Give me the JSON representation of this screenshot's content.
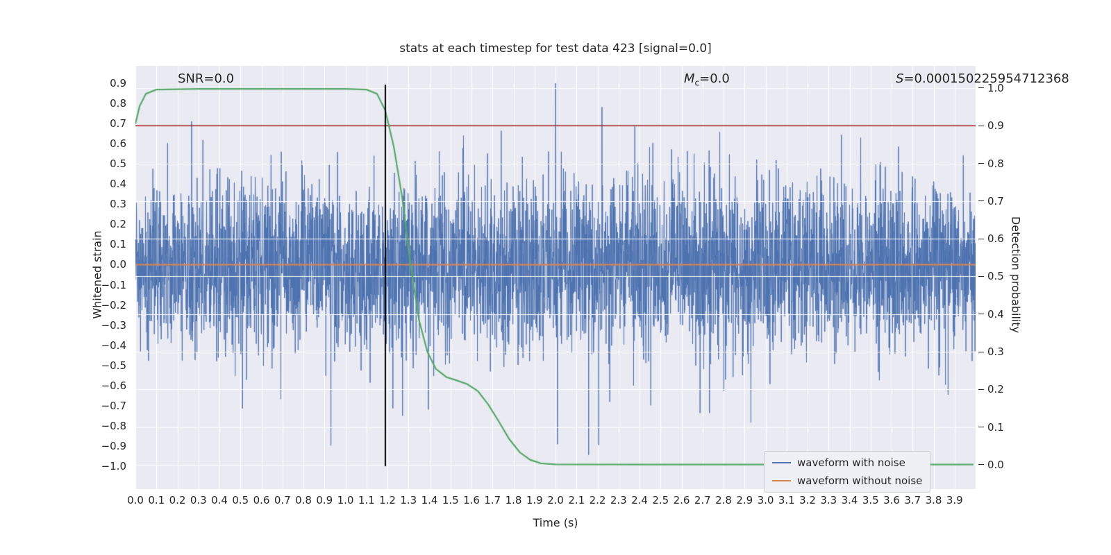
{
  "title": "stats at each timestep for test data 423 [signal=0.0]",
  "annotations": {
    "snr": "SNR=0.0",
    "mc_var": "M",
    "mc_sub": "c",
    "mc_eq": "=0.0",
    "s_var": "S",
    "s_eq": "=0.000150225954712368"
  },
  "axes": {
    "x_label": "Time (s)",
    "y_left_label": "Whitened strain",
    "y_right_label": "Detection probability",
    "x_ticks": [
      "0.0",
      "0.1",
      "0.2",
      "0.3",
      "0.4",
      "0.5",
      "0.6",
      "0.7",
      "0.8",
      "0.9",
      "1.0",
      "1.1",
      "1.2",
      "1.3",
      "1.4",
      "1.5",
      "1.6",
      "1.7",
      "1.8",
      "1.9",
      "2.0",
      "2.1",
      "2.2",
      "2.3",
      "2.4",
      "2.5",
      "2.6",
      "2.7",
      "2.8",
      "2.9",
      "3.0",
      "3.1",
      "3.2",
      "3.3",
      "3.4",
      "3.5",
      "3.6",
      "3.7",
      "3.8",
      "3.9"
    ],
    "y_left_ticks": [
      "0.9",
      "0.8",
      "0.7",
      "0.6",
      "0.5",
      "0.4",
      "0.3",
      "0.2",
      "0.1",
      "0.0",
      "−0.1",
      "−0.2",
      "−0.3",
      "−0.4",
      "−0.5",
      "−0.6",
      "−0.7",
      "−0.8",
      "−0.9",
      "−1.0"
    ],
    "y_right_ticks": [
      "1.0",
      "0.9",
      "0.8",
      "0.7",
      "0.6",
      "0.5",
      "0.4",
      "0.3",
      "0.2",
      "0.1",
      "0.0"
    ]
  },
  "legend": {
    "items": [
      {
        "label": "waveform with noise",
        "color": "#4c72b0"
      },
      {
        "label": "waveform without noise",
        "color": "#dd8452"
      }
    ]
  },
  "chart_data": {
    "type": "line",
    "plot_bg": "#eaeaf2",
    "grid_color": "#ffffff",
    "grid": true,
    "legend_position": "lower right",
    "x_range": [
      0.0,
      4.0
    ],
    "y_left_range": [
      -1.1136,
      0.9861
    ],
    "y_right_range": [
      -0.0645,
      1.0589
    ],
    "series": [
      {
        "name": "waveform with noise",
        "axis": "left",
        "color": "#4c72b0",
        "type": "noise",
        "mean": 0.0,
        "std": 0.21,
        "spike_prob": 0.02,
        "spike_mult": 1.9,
        "n_points": 4096,
        "seed": 423,
        "clip": [
          -1.0,
          0.9
        ],
        "line_width": 1
      },
      {
        "name": "waveform without noise",
        "axis": "left",
        "color": "#dd8452",
        "type": "hline",
        "y": 0.0,
        "line_width": 2.2
      },
      {
        "name": "detection threshold",
        "axis": "right",
        "color": "#a21d20",
        "type": "hline",
        "y": 0.9,
        "line_width": 1.6
      },
      {
        "name": "detection probability",
        "axis": "right",
        "color": "#55a868",
        "type": "line",
        "line_width": 2.2,
        "points": [
          [
            0.0,
            0.905
          ],
          [
            0.02,
            0.952
          ],
          [
            0.05,
            0.985
          ],
          [
            0.1,
            0.996
          ],
          [
            0.3,
            0.998
          ],
          [
            0.7,
            0.998
          ],
          [
            1.0,
            0.998
          ],
          [
            1.1,
            0.996
          ],
          [
            1.15,
            0.985
          ],
          [
            1.19,
            0.94
          ],
          [
            1.23,
            0.845
          ],
          [
            1.27,
            0.71
          ],
          [
            1.31,
            0.53
          ],
          [
            1.35,
            0.385
          ],
          [
            1.39,
            0.3
          ],
          [
            1.43,
            0.255
          ],
          [
            1.48,
            0.233
          ],
          [
            1.53,
            0.224
          ],
          [
            1.58,
            0.214
          ],
          [
            1.63,
            0.196
          ],
          [
            1.68,
            0.16
          ],
          [
            1.73,
            0.115
          ],
          [
            1.78,
            0.068
          ],
          [
            1.83,
            0.033
          ],
          [
            1.88,
            0.013
          ],
          [
            1.93,
            0.004
          ],
          [
            2.0,
            0.001
          ],
          [
            2.5,
            0.0005
          ],
          [
            3.0,
            0.0005
          ],
          [
            3.99,
            0.0005
          ]
        ]
      },
      {
        "name": "event time marker",
        "axis": "left",
        "color": "#000000",
        "type": "vline",
        "x": 1.19,
        "y0": -1.0,
        "y1": 0.893,
        "line_width": 2
      }
    ]
  }
}
